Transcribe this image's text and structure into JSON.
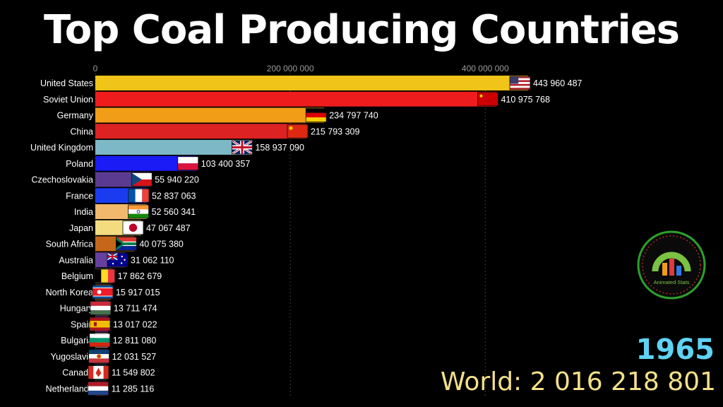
{
  "chart_data": {
    "type": "bar",
    "orientation": "horizontal",
    "title": "Top Coal Producing Countries",
    "x_ticks": [
      0,
      200000000,
      400000000
    ],
    "x_tick_labels": [
      "0",
      "200 000 000",
      "400 000 000"
    ],
    "xlim": [
      0,
      450000000
    ],
    "grid": true,
    "categories": [
      "United States",
      "Soviet Union",
      "Germany",
      "China",
      "United Kingdom",
      "Poland",
      "Czechoslovakia",
      "France",
      "India",
      "Japan",
      "South Africa",
      "Australia",
      "Belgium",
      "North Korea",
      "Hungary",
      "Spain",
      "Bulgaria",
      "Yugoslavia",
      "Canada",
      "Netherlands"
    ],
    "values": [
      443960487,
      410975768,
      234797740,
      215793309,
      158937090,
      103400357,
      55940220,
      52837063,
      52560341,
      47067487,
      40075380,
      31062110,
      17862679,
      15917015,
      13711474,
      13017022,
      12811080,
      12031527,
      11549802,
      11285116
    ],
    "value_labels": [
      "443 960 487",
      "410 975 768",
      "234 797 740",
      "215 793 309",
      "158 937 090",
      "103 400 357",
      "55 940 220",
      "52 837 063",
      "52 560 341",
      "47 067 487",
      "40 075 380",
      "31 062 110",
      "17 862 679",
      "15 917 015",
      "13 711 474",
      "13 017 022",
      "12 811 080",
      "12 031 527",
      "11 549 802",
      "11 285 116"
    ],
    "colors": [
      "#f0c419",
      "#ee1c1c",
      "#f29d17",
      "#dc2222",
      "#7db8c6",
      "#1b1bf5",
      "#5b3b90",
      "#1b3bf0",
      "#f2b86c",
      "#f3dc80",
      "#c6661a",
      "#6640a0",
      "#706a58",
      "#ee7d16",
      "#8a8a88",
      "#e640e8",
      "#cfcfcf",
      "#6a2858",
      "#1a7d76",
      "#5e1a2c"
    ],
    "flags": [
      "flag-usa",
      "flag-ussr",
      "flag-germany",
      "flag-china",
      "flag-uk",
      "flag-poland",
      "flag-czechoslovakia",
      "flag-france",
      "flag-india",
      "flag-japan",
      "flag-south-africa",
      "flag-australia",
      "flag-belgium",
      "flag-north-korea",
      "flag-hungary",
      "flag-spain",
      "flag-bulgaria",
      "flag-yugoslavia",
      "flag-canada",
      "flag-netherlands"
    ],
    "year": "1965",
    "total_label": "World: 2 016 218 801"
  },
  "badge": {
    "text": "Animated Stats",
    "icon": "animated-stats-logo-icon",
    "ring_color": "#2ca02c"
  }
}
